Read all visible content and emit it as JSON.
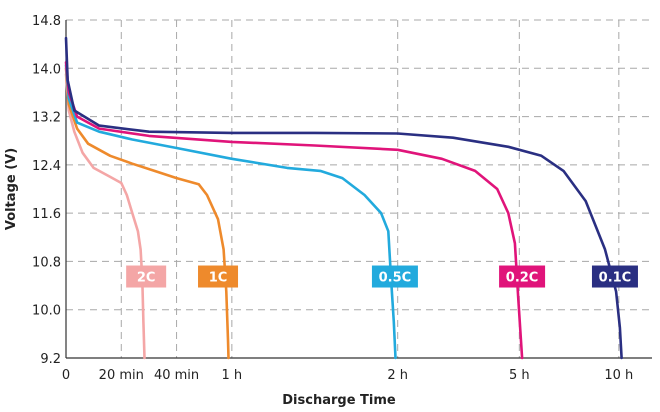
{
  "chart_data": {
    "type": "line",
    "title": "",
    "xlabel": "Discharge Time",
    "ylabel": "Voltage (V)",
    "ylim": [
      9.2,
      14.8
    ],
    "yticks": [
      "14.8",
      "14.0",
      "13.2",
      "12.4",
      "11.6",
      "10.8",
      "10.0",
      "9.2"
    ],
    "xlim": [
      0,
      10.6
    ],
    "xticks": [
      {
        "label": "0",
        "value": 0
      },
      {
        "label": "20 min",
        "value": 1
      },
      {
        "label": "40 min",
        "value": 2
      },
      {
        "label": "1 h",
        "value": 3
      },
      {
        "label": "2 h",
        "value": 6
      },
      {
        "label": "5 h",
        "value": 8.2
      },
      {
        "label": "10 h",
        "value": 10
      }
    ],
    "grid": true,
    "series": [
      {
        "name": "2C",
        "color": "#f4a6a6",
        "points": [
          [
            0,
            13.9
          ],
          [
            0.05,
            13.3
          ],
          [
            0.15,
            12.95
          ],
          [
            0.3,
            12.6
          ],
          [
            0.5,
            12.35
          ],
          [
            0.8,
            12.2
          ],
          [
            1.0,
            12.1
          ],
          [
            1.1,
            11.9
          ],
          [
            1.2,
            11.6
          ],
          [
            1.3,
            11.3
          ],
          [
            1.35,
            11.0
          ],
          [
            1.38,
            10.5
          ],
          [
            1.4,
            9.8
          ],
          [
            1.42,
            9.2
          ]
        ]
      },
      {
        "name": "1C",
        "color": "#ee8a2c",
        "points": [
          [
            0,
            14.0
          ],
          [
            0.05,
            13.4
          ],
          [
            0.2,
            13.0
          ],
          [
            0.4,
            12.75
          ],
          [
            0.8,
            12.55
          ],
          [
            1.2,
            12.42
          ],
          [
            1.6,
            12.3
          ],
          [
            2.0,
            12.18
          ],
          [
            2.4,
            12.08
          ],
          [
            2.55,
            11.9
          ],
          [
            2.75,
            11.5
          ],
          [
            2.85,
            11.0
          ],
          [
            2.9,
            10.3
          ],
          [
            2.93,
            9.5
          ],
          [
            2.94,
            9.2
          ]
        ]
      },
      {
        "name": "0.5C",
        "color": "#22aadd",
        "points": [
          [
            0,
            14.05
          ],
          [
            0.05,
            13.5
          ],
          [
            0.2,
            13.1
          ],
          [
            0.6,
            12.95
          ],
          [
            1.2,
            12.82
          ],
          [
            2.0,
            12.68
          ],
          [
            3.0,
            12.5
          ],
          [
            4.0,
            12.35
          ],
          [
            4.6,
            12.3
          ],
          [
            5.0,
            12.18
          ],
          [
            5.4,
            11.9
          ],
          [
            5.7,
            11.6
          ],
          [
            5.83,
            11.3
          ],
          [
            5.88,
            10.5
          ],
          [
            5.93,
            9.8
          ],
          [
            5.96,
            9.2
          ]
        ]
      },
      {
        "name": "0.2C",
        "color": "#e0147a",
        "points": [
          [
            0,
            14.1
          ],
          [
            0.05,
            13.6
          ],
          [
            0.2,
            13.2
          ],
          [
            0.6,
            13.0
          ],
          [
            1.5,
            12.88
          ],
          [
            3.0,
            12.78
          ],
          [
            4.5,
            12.72
          ],
          [
            6.0,
            12.65
          ],
          [
            6.8,
            12.5
          ],
          [
            7.4,
            12.3
          ],
          [
            7.8,
            12.0
          ],
          [
            8.0,
            11.6
          ],
          [
            8.12,
            11.1
          ],
          [
            8.18,
            10.2
          ],
          [
            8.25,
            9.2
          ]
        ]
      },
      {
        "name": "0.1C",
        "color": "#2a2f82",
        "points": [
          [
            0,
            14.5
          ],
          [
            0.03,
            13.8
          ],
          [
            0.15,
            13.3
          ],
          [
            0.6,
            13.05
          ],
          [
            1.5,
            12.95
          ],
          [
            3.0,
            12.93
          ],
          [
            4.5,
            12.93
          ],
          [
            6.0,
            12.92
          ],
          [
            7.0,
            12.85
          ],
          [
            8.0,
            12.7
          ],
          [
            8.6,
            12.55
          ],
          [
            9.0,
            12.3
          ],
          [
            9.4,
            11.8
          ],
          [
            9.75,
            11.0
          ],
          [
            9.95,
            10.3
          ],
          [
            10.02,
            9.7
          ],
          [
            10.05,
            9.2
          ]
        ]
      }
    ],
    "annotations": [
      {
        "label": "2C",
        "color": "#f4a6a6",
        "x": 1.45,
        "y": 10.55
      },
      {
        "label": "1C",
        "color": "#ee8a2c",
        "x": 2.75,
        "y": 10.55
      },
      {
        "label": "0.5C",
        "color": "#22aadd",
        "x": 5.95,
        "y": 10.55
      },
      {
        "label": "0.2C",
        "color": "#e0147a",
        "x": 8.25,
        "y": 10.55
      },
      {
        "label": "0.1C",
        "color": "#2a2f82",
        "x": 9.93,
        "y": 10.55
      }
    ]
  }
}
